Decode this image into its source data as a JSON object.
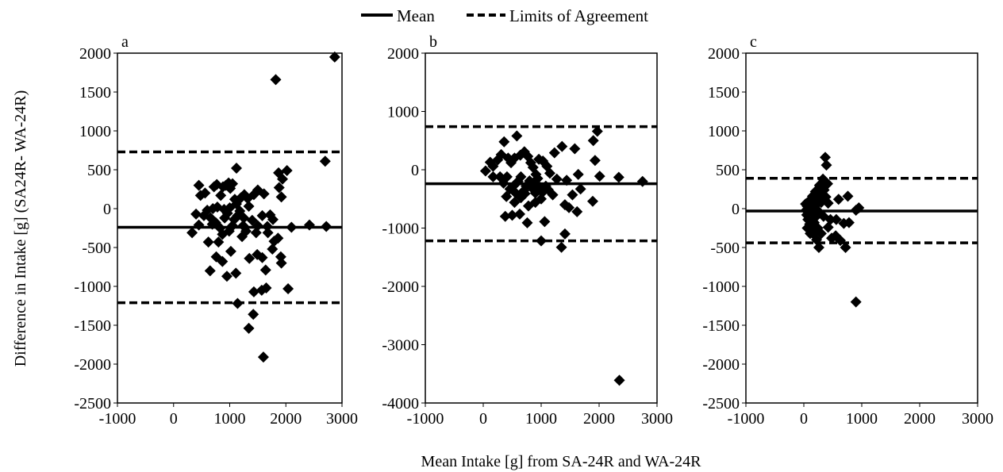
{
  "legend": {
    "mean_label": "Mean",
    "loa_label": "Limits of Agreement"
  },
  "axes": {
    "ylabel": "Difference in Intake [g] (SA24R- WA-24R)",
    "xlabel": "Mean Intake [g] from SA-24R and WA-24R"
  },
  "chart_data": [
    {
      "type": "scatter",
      "panel_label": "a",
      "xlim": [
        -1000,
        3000
      ],
      "ylim": [
        -2500,
        2000
      ],
      "xticks": [
        -1000,
        0,
        1000,
        2000,
        3000
      ],
      "yticks": [
        -2500,
        -2000,
        -1500,
        -1000,
        -500,
        0,
        500,
        1000,
        1500,
        2000
      ],
      "mean": -240,
      "loa": [
        730,
        -1210
      ],
      "points": [
        [
          1820,
          1660
        ],
        [
          2870,
          1950
        ],
        [
          2700,
          610
        ],
        [
          2720,
          -230
        ],
        [
          2020,
          490
        ],
        [
          1870,
          460
        ],
        [
          1940,
          380
        ],
        [
          1880,
          270
        ],
        [
          1920,
          150
        ],
        [
          2100,
          -240
        ],
        [
          2420,
          -210
        ],
        [
          1910,
          -620
        ],
        [
          1920,
          -700
        ],
        [
          2040,
          -1030
        ],
        [
          1600,
          -1910
        ],
        [
          1340,
          -1540
        ],
        [
          1420,
          -1360
        ],
        [
          1570,
          -1050
        ],
        [
          1650,
          -1020
        ],
        [
          1430,
          -1070
        ],
        [
          1140,
          -1220
        ],
        [
          1110,
          -830
        ],
        [
          950,
          -870
        ],
        [
          760,
          -620
        ],
        [
          870,
          -680
        ],
        [
          650,
          -800
        ],
        [
          620,
          -430
        ],
        [
          800,
          -430
        ],
        [
          1020,
          -550
        ],
        [
          1220,
          -360
        ],
        [
          1350,
          -640
        ],
        [
          1490,
          -590
        ],
        [
          1580,
          -630
        ],
        [
          1640,
          -790
        ],
        [
          1760,
          -520
        ],
        [
          1790,
          -420
        ],
        [
          1860,
          -380
        ],
        [
          1670,
          -230
        ],
        [
          1680,
          -310
        ],
        [
          1770,
          -140
        ],
        [
          1720,
          -80
        ],
        [
          1610,
          190
        ],
        [
          1580,
          -90
        ],
        [
          1500,
          -220
        ],
        [
          1470,
          -310
        ],
        [
          1400,
          -150
        ],
        [
          1340,
          30
        ],
        [
          1430,
          180
        ],
        [
          1500,
          240
        ],
        [
          1320,
          130
        ],
        [
          1260,
          180
        ],
        [
          1200,
          140
        ],
        [
          1120,
          60
        ],
        [
          1090,
          120
        ],
        [
          1050,
          320
        ],
        [
          1010,
          260
        ],
        [
          1120,
          520
        ],
        [
          980,
          330
        ],
        [
          930,
          300
        ],
        [
          880,
          280
        ],
        [
          840,
          170
        ],
        [
          770,
          310
        ],
        [
          720,
          280
        ],
        [
          560,
          200
        ],
        [
          480,
          170
        ],
        [
          450,
          300
        ],
        [
          400,
          -70
        ],
        [
          540,
          -90
        ],
        [
          600,
          -20
        ],
        [
          660,
          -120
        ],
        [
          690,
          -200
        ],
        [
          750,
          -180
        ],
        [
          830,
          -250
        ],
        [
          870,
          -330
        ],
        [
          910,
          -120
        ],
        [
          960,
          -60
        ],
        [
          990,
          -290
        ],
        [
          1050,
          -220
        ],
        [
          1080,
          -140
        ],
        [
          1140,
          -90
        ],
        [
          1180,
          -30
        ],
        [
          1240,
          -220
        ],
        [
          1290,
          -290
        ],
        [
          330,
          -310
        ],
        [
          450,
          -210
        ],
        [
          700,
          0
        ],
        [
          780,
          20
        ],
        [
          900,
          -10
        ],
        [
          1000,
          10
        ],
        [
          1250,
          -120
        ]
      ]
    },
    {
      "type": "scatter",
      "panel_label": "b",
      "xlim": [
        -1000,
        3000
      ],
      "ylim": [
        -4000,
        2000
      ],
      "xticks": [
        -1000,
        0,
        1000,
        2000,
        3000
      ],
      "yticks": [
        -4000,
        -3000,
        -2000,
        -1000,
        0,
        1000,
        2000
      ],
      "mean": -240,
      "loa": [
        740,
        -1220
      ],
      "points": [
        [
          1970,
          660
        ],
        [
          1900,
          500
        ],
        [
          1930,
          160
        ],
        [
          1580,
          360
        ],
        [
          1360,
          400
        ],
        [
          1230,
          290
        ],
        [
          2350,
          -3610
        ],
        [
          1350,
          -1330
        ],
        [
          1410,
          -1100
        ],
        [
          1000,
          -1220
        ],
        [
          1060,
          -890
        ],
        [
          760,
          -910
        ],
        [
          630,
          -760
        ],
        [
          500,
          -780
        ],
        [
          380,
          -800
        ],
        [
          540,
          -560
        ],
        [
          780,
          -620
        ],
        [
          900,
          -400
        ],
        [
          1200,
          -430
        ],
        [
          1410,
          -600
        ],
        [
          1480,
          -650
        ],
        [
          1620,
          -720
        ],
        [
          1680,
          -330
        ],
        [
          1540,
          -430
        ],
        [
          1890,
          -540
        ],
        [
          2010,
          -110
        ],
        [
          2340,
          -130
        ],
        [
          2750,
          -200
        ],
        [
          1640,
          -80
        ],
        [
          1440,
          -180
        ],
        [
          1270,
          -160
        ],
        [
          1150,
          -60
        ],
        [
          1100,
          60
        ],
        [
          1030,
          150
        ],
        [
          960,
          180
        ],
        [
          910,
          -80
        ],
        [
          860,
          40
        ],
        [
          820,
          120
        ],
        [
          770,
          230
        ],
        [
          710,
          310
        ],
        [
          640,
          250
        ],
        [
          580,
          580
        ],
        [
          540,
          200
        ],
        [
          480,
          120
        ],
        [
          430,
          200
        ],
        [
          360,
          480
        ],
        [
          310,
          260
        ],
        [
          250,
          170
        ],
        [
          170,
          60
        ],
        [
          120,
          130
        ],
        [
          40,
          -20
        ],
        [
          170,
          -120
        ],
        [
          290,
          -120
        ],
        [
          350,
          -230
        ],
        [
          410,
          -120
        ],
        [
          460,
          -330
        ],
        [
          520,
          -280
        ],
        [
          600,
          -200
        ],
        [
          650,
          -120
        ],
        [
          700,
          -360
        ],
        [
          740,
          -280
        ],
        [
          800,
          -190
        ],
        [
          850,
          -320
        ],
        [
          880,
          -230
        ],
        [
          940,
          -150
        ],
        [
          980,
          -300
        ],
        [
          1020,
          -390
        ],
        [
          1080,
          -280
        ],
        [
          650,
          -480
        ],
        [
          720,
          -410
        ],
        [
          560,
          -400
        ],
        [
          400,
          -460
        ],
        [
          900,
          -560
        ],
        [
          1000,
          -500
        ],
        [
          1120,
          -340
        ]
      ]
    },
    {
      "type": "scatter",
      "panel_label": "c",
      "xlim": [
        -1000,
        3000
      ],
      "ylim": [
        -2500,
        2000
      ],
      "xticks": [
        -1000,
        0,
        1000,
        2000,
        3000
      ],
      "yticks": [
        -2500,
        -2000,
        -1500,
        -1000,
        -500,
        0,
        500,
        1000,
        1500,
        2000
      ],
      "mean": -30,
      "loa": [
        390,
        -440
      ],
      "points": [
        [
          900,
          -1200
        ],
        [
          370,
          660
        ],
        [
          390,
          560
        ],
        [
          330,
          380
        ],
        [
          410,
          320
        ],
        [
          350,
          240
        ],
        [
          280,
          180
        ],
        [
          300,
          80
        ],
        [
          380,
          150
        ],
        [
          420,
          70
        ],
        [
          460,
          -140
        ],
        [
          560,
          -140
        ],
        [
          600,
          120
        ],
        [
          760,
          160
        ],
        [
          950,
          10
        ],
        [
          900,
          -20
        ],
        [
          780,
          -180
        ],
        [
          690,
          -190
        ],
        [
          630,
          -410
        ],
        [
          550,
          -350
        ],
        [
          480,
          -380
        ],
        [
          420,
          -240
        ],
        [
          720,
          -500
        ],
        [
          260,
          -500
        ],
        [
          220,
          -400
        ],
        [
          170,
          -330
        ],
        [
          140,
          -260
        ],
        [
          100,
          -200
        ],
        [
          70,
          -140
        ],
        [
          50,
          -80
        ],
        [
          40,
          -20
        ],
        [
          60,
          30
        ],
        [
          90,
          80
        ],
        [
          120,
          120
        ],
        [
          150,
          160
        ],
        [
          190,
          110
        ],
        [
          230,
          60
        ],
        [
          240,
          -50
        ],
        [
          200,
          -110
        ],
        [
          160,
          -60
        ],
        [
          130,
          10
        ],
        [
          100,
          -40
        ],
        [
          80,
          50
        ],
        [
          200,
          220
        ],
        [
          270,
          300
        ],
        [
          240,
          -250
        ],
        [
          180,
          -180
        ],
        [
          300,
          -320
        ],
        [
          340,
          -100
        ],
        [
          110,
          -320
        ],
        [
          60,
          -250
        ],
        [
          30,
          60
        ],
        [
          150,
          60
        ],
        [
          220,
          -10
        ]
      ]
    }
  ]
}
